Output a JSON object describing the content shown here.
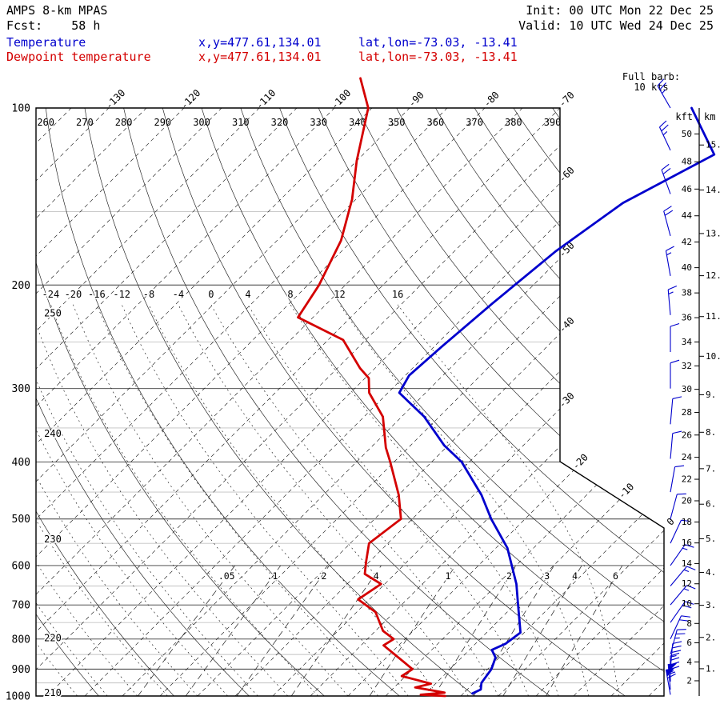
{
  "header": {
    "model": "AMPS 8-km MPAS",
    "fcst": "Fcst:    58 h",
    "init": "Init: 00 UTC Mon 22 Dec 25",
    "valid": "Valid: 10 UTC Wed 24 Dec 25",
    "temperature_label": "Temperature",
    "dewpoint_label": "Dewpoint temperature",
    "temperature_xy": "x,y=477.61,134.01",
    "temperature_latlon": "lat,lon=-73.03, -13.41",
    "dewpoint_xy": "x,y=477.61,134.01",
    "dewpoint_latlon": "lat,lon=-73.03, -13.41",
    "barb_legend_line1": "Full barb:",
    "barb_legend_line2": "10 kts"
  },
  "colors": {
    "temperature": "#0000cd",
    "dewpoint": "#d40000",
    "outline": "#000000",
    "grid_major": "#3a3a3a",
    "grid_minor": "#c2c2c2",
    "background_line": "#1a1a1a"
  },
  "chart_data": {
    "type": "skewt-log-p sounding",
    "title": "AMPS 8-km MPAS 58 h forecast sounding",
    "pressure_hpa_ticks": [
      100,
      200,
      300,
      400,
      500,
      600,
      700,
      800,
      900,
      1000
    ],
    "isotherm_labels_top_c": [
      -130,
      -120,
      -110,
      -100,
      -90,
      -80,
      -70
    ],
    "isotherm_labels_right_c": [
      -60,
      -50,
      -40,
      -30,
      -20,
      -10,
      0
    ],
    "isotherm_step_c": 5,
    "dry_adiabat_labels_top_k": [
      260,
      270,
      280,
      290,
      300,
      310,
      320,
      330,
      340,
      350,
      360,
      370,
      380,
      390
    ],
    "dry_adiabat_labels_left_k": [
      250,
      240,
      230,
      220,
      210
    ],
    "moist_adiabat_labels_c": [
      -24,
      -20,
      -16,
      -12,
      -8,
      -4,
      0,
      4,
      8,
      12,
      16
    ],
    "mixing_ratio_g_kg": [
      0.05,
      0.1,
      0.2,
      0.4,
      1,
      2,
      3,
      4,
      6
    ],
    "height_axis_kft": {
      "title": "kft",
      "values": [
        50,
        48,
        46,
        44,
        42,
        40,
        38,
        36,
        34,
        32,
        30,
        28,
        26,
        24,
        22,
        20,
        18,
        16,
        14,
        12,
        10,
        8,
        6,
        4,
        2
      ]
    },
    "height_axis_km": {
      "title": "km",
      "values": [
        15,
        14,
        13,
        12,
        11,
        10,
        9,
        8,
        7,
        6,
        5,
        4,
        3,
        2,
        1
      ]
    },
    "wind_barb_full_kts": 10,
    "temperature_profile_p_t": [
      [
        100,
        -52.5
      ],
      [
        120,
        -43.3
      ],
      [
        145,
        -49
      ],
      [
        175,
        -51.5
      ],
      [
        215,
        -53
      ],
      [
        255,
        -54
      ],
      [
        285,
        -54.5
      ],
      [
        305,
        -53.5
      ],
      [
        335,
        -47
      ],
      [
        375,
        -40.5
      ],
      [
        400,
        -36
      ],
      [
        455,
        -29
      ],
      [
        500,
        -24.5
      ],
      [
        560,
        -18.5
      ],
      [
        645,
        -12.5
      ],
      [
        700,
        -9.5
      ],
      [
        780,
        -5.5
      ],
      [
        815,
        -6
      ],
      [
        835,
        -7
      ],
      [
        860,
        -5.5
      ],
      [
        900,
        -4.5
      ],
      [
        950,
        -4
      ],
      [
        975,
        -3.2
      ],
      [
        990,
        -3.8
      ]
    ],
    "dewpoint_profile_p_t": [
      [
        89,
        -100.5
      ],
      [
        100,
        -95.5
      ],
      [
        123,
        -90
      ],
      [
        143,
        -85.5
      ],
      [
        168,
        -81.5
      ],
      [
        200,
        -78.5
      ],
      [
        227,
        -77
      ],
      [
        248,
        -68
      ],
      [
        277,
        -62
      ],
      [
        288,
        -59.5
      ],
      [
        305,
        -57.5
      ],
      [
        335,
        -52.5
      ],
      [
        378,
        -48
      ],
      [
        400,
        -45.5
      ],
      [
        455,
        -40
      ],
      [
        500,
        -36.5
      ],
      [
        550,
        -37.5
      ],
      [
        590,
        -35.5
      ],
      [
        620,
        -34
      ],
      [
        645,
        -30.5
      ],
      [
        685,
        -31.5
      ],
      [
        720,
        -27.5
      ],
      [
        775,
        -24
      ],
      [
        800,
        -21.5
      ],
      [
        820,
        -22
      ],
      [
        900,
        -15
      ],
      [
        925,
        -15.5
      ],
      [
        953,
        -10.6
      ],
      [
        967,
        -12.2
      ],
      [
        987,
        -7.6
      ],
      [
        995,
        -10.5
      ],
      [
        1000,
        -7.1
      ]
    ],
    "wind_barbs_p_kts_dir": [
      [
        100,
        25,
        330
      ],
      [
        118,
        25,
        335
      ],
      [
        140,
        20,
        340
      ],
      [
        165,
        20,
        345
      ],
      [
        193,
        15,
        350
      ],
      [
        225,
        15,
        355
      ],
      [
        260,
        10,
        0
      ],
      [
        300,
        10,
        0
      ],
      [
        345,
        10,
        5
      ],
      [
        395,
        10,
        5
      ],
      [
        450,
        10,
        10
      ],
      [
        500,
        10,
        15
      ],
      [
        550,
        10,
        25
      ],
      [
        600,
        15,
        35
      ],
      [
        650,
        15,
        40
      ],
      [
        700,
        15,
        40
      ],
      [
        750,
        20,
        35
      ],
      [
        800,
        20,
        25
      ],
      [
        850,
        25,
        15
      ],
      [
        900,
        35,
        5
      ],
      [
        945,
        45,
        0
      ],
      [
        975,
        55,
        355
      ],
      [
        995,
        60,
        350
      ]
    ]
  }
}
